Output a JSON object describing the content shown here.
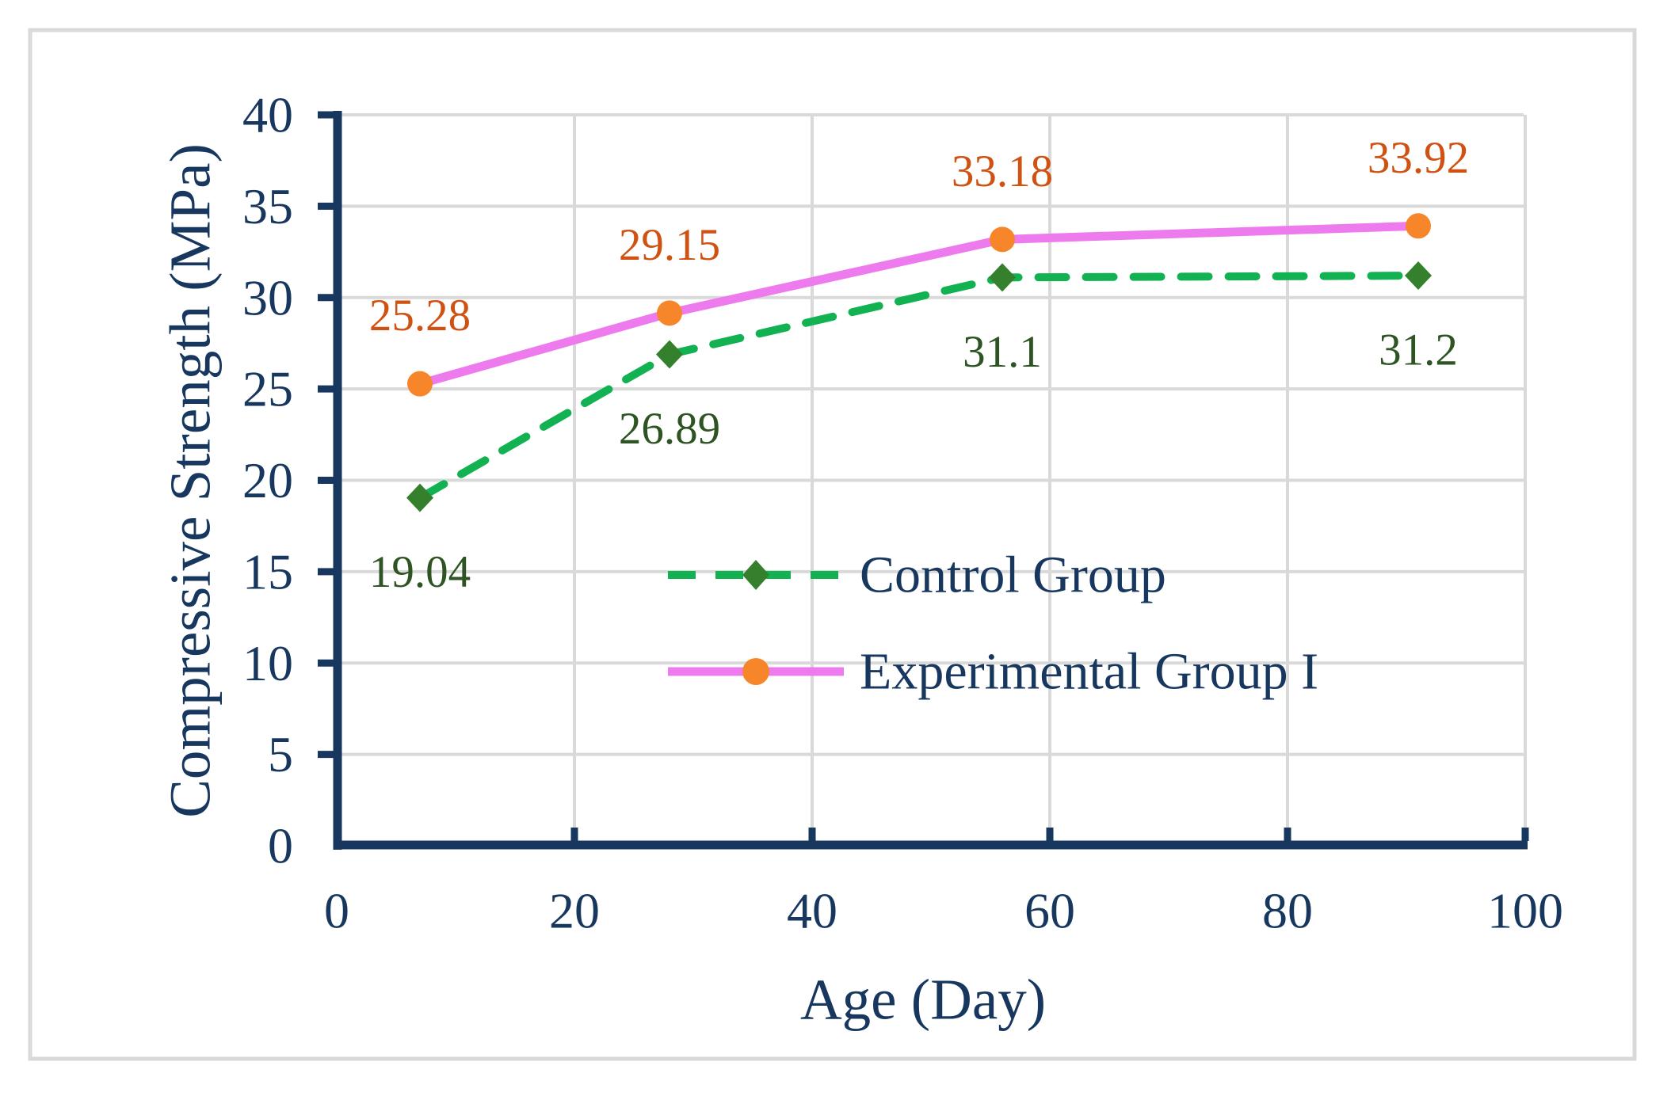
{
  "figure": {
    "background": "#ffffff",
    "border_color": "#d9d9d9"
  },
  "chart_data": {
    "type": "line",
    "title": "",
    "xlabel": "Age (Day)",
    "ylabel": "Compressive Strength (MPa)",
    "x": [
      7,
      28,
      56,
      91
    ],
    "series": [
      {
        "name": "Control Group",
        "values": [
          19.04,
          26.89,
          31.1,
          31.2
        ],
        "labels": [
          "19.04",
          "26.89",
          "31.1",
          "31.2"
        ],
        "line_color": "#12b252",
        "line_style": "dashed",
        "line_width": 10,
        "marker": "diamond",
        "marker_color": "#35802d",
        "label_color": "#2d5422",
        "label_position": "below"
      },
      {
        "name": "Experimental Group I",
        "values": [
          25.28,
          29.15,
          33.18,
          33.92
        ],
        "labels": [
          "25.28",
          "29.15",
          "33.18",
          "33.92"
        ],
        "line_color": "#ee7bee",
        "line_style": "solid",
        "line_width": 11,
        "marker": "circle",
        "marker_color": "#f7862a",
        "label_color": "#d05212",
        "label_position": "above"
      }
    ],
    "xlim": [
      0,
      100
    ],
    "ylim": [
      0,
      40
    ],
    "x_ticks": [
      0,
      20,
      40,
      60,
      80,
      100
    ],
    "x_tick_labels": [
      "0",
      "20",
      "40",
      "60",
      "80",
      "100"
    ],
    "y_ticks": [
      0,
      5,
      10,
      15,
      20,
      25,
      30,
      35,
      40
    ],
    "y_tick_labels": [
      "0",
      "5",
      "10",
      "15",
      "20",
      "25",
      "30",
      "35",
      "40"
    ],
    "grid": true,
    "grid_color": "#d9d9d9",
    "axis_color": "#17375e",
    "legend_position": "inside-center"
  }
}
